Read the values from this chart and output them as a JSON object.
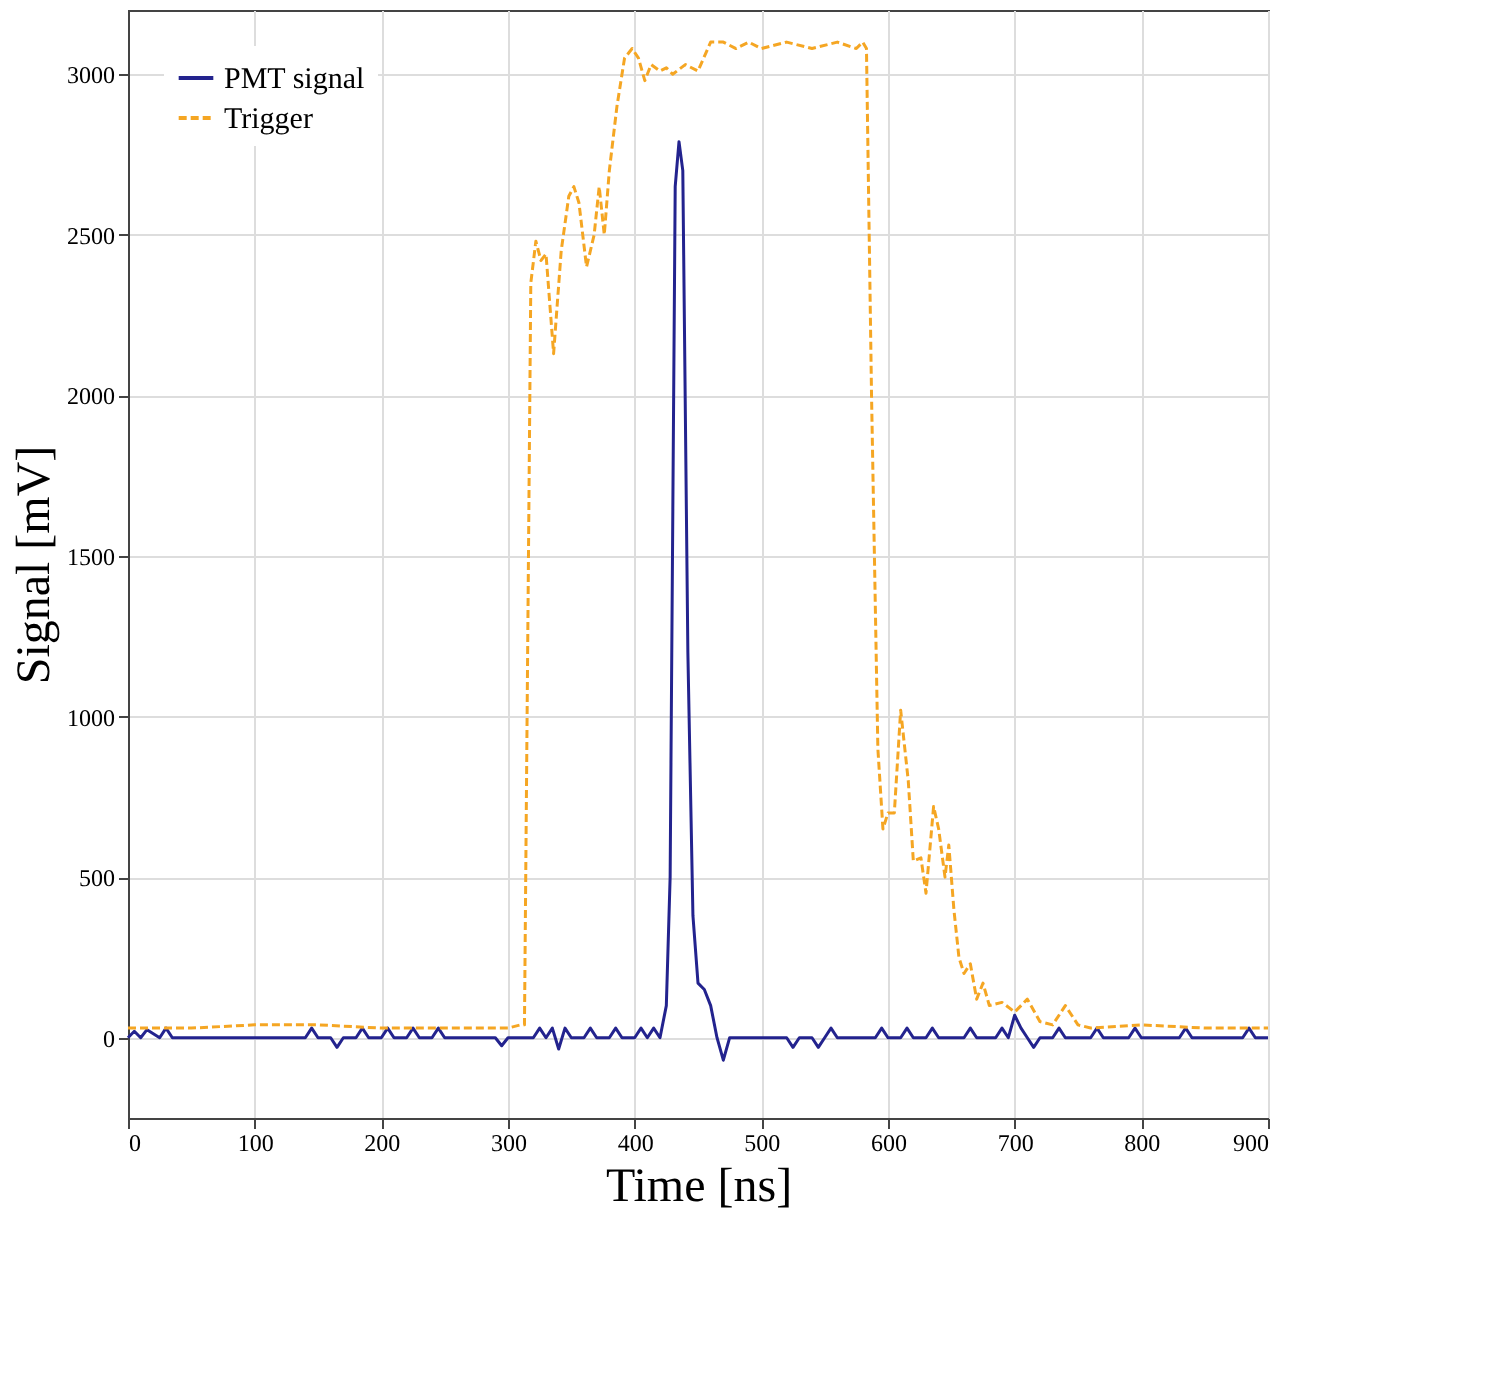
{
  "chart_data": {
    "type": "line",
    "xlabel": "Time [ns]",
    "ylabel": "Signal [mV]",
    "xlim": [
      0,
      900
    ],
    "xticks": [
      0,
      100,
      200,
      300,
      400,
      500,
      600,
      700,
      800,
      900
    ],
    "ylim": [
      -250,
      3200
    ],
    "yticks": [
      0,
      500,
      1000,
      1500,
      2000,
      2500,
      3000
    ],
    "grid": true,
    "legend": "top left",
    "series": [
      {
        "name": "PMT signal",
        "color": "#23238e",
        "line_style": "solid",
        "x": [
          0,
          5,
          10,
          15,
          25,
          30,
          35,
          140,
          145,
          150,
          160,
          165,
          170,
          180,
          185,
          190,
          200,
          205,
          210,
          220,
          225,
          230,
          240,
          245,
          250,
          290,
          295,
          300,
          320,
          325,
          330,
          335,
          340,
          345,
          350,
          360,
          365,
          370,
          380,
          385,
          390,
          400,
          405,
          410,
          415,
          420,
          425,
          428,
          432,
          435,
          438,
          442,
          446,
          450,
          455,
          460,
          465,
          470,
          475,
          520,
          525,
          530,
          540,
          545,
          550,
          555,
          560,
          590,
          595,
          600,
          610,
          615,
          620,
          630,
          635,
          640,
          660,
          665,
          670,
          685,
          690,
          695,
          700,
          705,
          710,
          715,
          720,
          730,
          735,
          740,
          760,
          765,
          770,
          790,
          795,
          800,
          830,
          835,
          840,
          880,
          885,
          890,
          900
        ],
        "values": [
          0,
          20,
          0,
          25,
          0,
          30,
          0,
          0,
          30,
          0,
          0,
          -30,
          0,
          0,
          30,
          0,
          0,
          30,
          0,
          0,
          30,
          0,
          0,
          30,
          0,
          0,
          -25,
          0,
          0,
          30,
          0,
          30,
          -35,
          30,
          0,
          0,
          30,
          0,
          0,
          30,
          0,
          0,
          30,
          0,
          30,
          0,
          100,
          500,
          2650,
          2790,
          2700,
          1200,
          380,
          170,
          150,
          100,
          0,
          -70,
          0,
          0,
          -30,
          0,
          0,
          -30,
          0,
          30,
          0,
          0,
          30,
          0,
          0,
          30,
          0,
          0,
          30,
          0,
          0,
          30,
          0,
          0,
          30,
          0,
          70,
          30,
          0,
          -30,
          0,
          0,
          30,
          0,
          0,
          30,
          0,
          0,
          30,
          0,
          0,
          30,
          0,
          0,
          30,
          0,
          0
        ]
      },
      {
        "name": "Trigger",
        "color": "#f5a623",
        "line_style": "dashed",
        "x": [
          0,
          50,
          100,
          150,
          200,
          250,
          300,
          310,
          313,
          318,
          322,
          326,
          330,
          336,
          342,
          348,
          352,
          356,
          362,
          368,
          372,
          376,
          380,
          386,
          392,
          398,
          403,
          408,
          413,
          420,
          425,
          430,
          440,
          450,
          460,
          470,
          480,
          490,
          500,
          520,
          540,
          560,
          575,
          580,
          583,
          587,
          592,
          596,
          600,
          605,
          610,
          616,
          620,
          626,
          630,
          636,
          640,
          645,
          648,
          652,
          656,
          660,
          665,
          670,
          675,
          680,
          690,
          700,
          710,
          720,
          730,
          740,
          750,
          760,
          800,
          850,
          900
        ],
        "values": [
          30,
          30,
          40,
          40,
          30,
          30,
          30,
          40,
          40,
          2350,
          2480,
          2420,
          2440,
          2130,
          2450,
          2620,
          2650,
          2600,
          2400,
          2500,
          2650,
          2500,
          2700,
          2900,
          3050,
          3080,
          3050,
          2980,
          3030,
          3010,
          3020,
          3000,
          3030,
          3010,
          3100,
          3100,
          3080,
          3100,
          3080,
          3100,
          3080,
          3100,
          3080,
          3100,
          3080,
          2000,
          900,
          650,
          700,
          700,
          1020,
          800,
          550,
          560,
          450,
          720,
          650,
          500,
          600,
          400,
          250,
          200,
          230,
          120,
          170,
          100,
          110,
          80,
          120,
          50,
          40,
          100,
          40,
          30,
          40,
          30,
          30
        ]
      }
    ]
  }
}
